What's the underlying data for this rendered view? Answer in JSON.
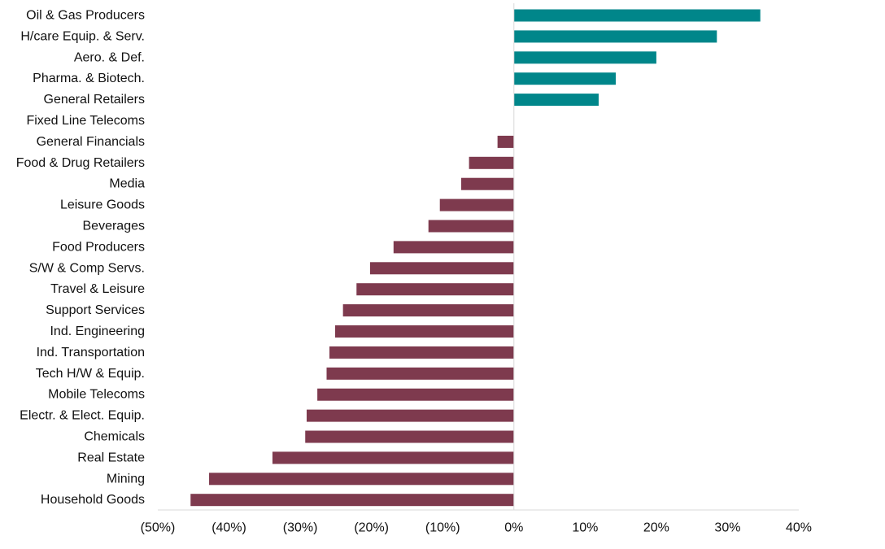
{
  "chart_data": {
    "type": "bar",
    "orientation": "horizontal",
    "categories": [
      "Oil & Gas Producers",
      "H/care Equip. & Serv.",
      "Aero. & Def.",
      "Pharma. & Biotech.",
      "General Retailers",
      "Fixed Line Telecoms",
      "General Financials",
      "Food & Drug Retailers",
      "Media",
      "Leisure Goods",
      "Beverages",
      "Food Producers",
      "S/W & Comp Servs.",
      "Travel & Leisure",
      "Support Services",
      "Ind. Engineering",
      "Ind. Transportation",
      "Tech H/W & Equip.",
      "Mobile Telecoms",
      "Electr. & Elect. Equip.",
      "Chemicals",
      "Real Estate",
      "Mining",
      "Household Goods"
    ],
    "values": [
      34.6,
      28.5,
      20.0,
      14.3,
      11.9,
      0.0,
      -2.3,
      -6.3,
      -7.4,
      -10.4,
      -12.0,
      -16.9,
      -20.2,
      -22.1,
      -24.0,
      -25.1,
      -25.9,
      -26.3,
      -27.6,
      -29.1,
      -29.3,
      -33.9,
      -42.8,
      -45.4
    ],
    "xlim": [
      -50,
      40
    ],
    "xticks": [
      -50,
      -40,
      -30,
      -20,
      -10,
      0,
      10,
      20,
      30,
      40
    ],
    "xtick_labels": [
      "(50%)",
      "(40%)",
      "(30%)",
      "(20%)",
      "(10%)",
      "0%",
      "10%",
      "20%",
      "30%",
      "40%"
    ],
    "title": "",
    "xlabel": "",
    "ylabel": "",
    "grid": false,
    "colors": {
      "positive": "#00868A",
      "negative": "#7E3A4E",
      "axis": "#D9D9D9"
    }
  }
}
